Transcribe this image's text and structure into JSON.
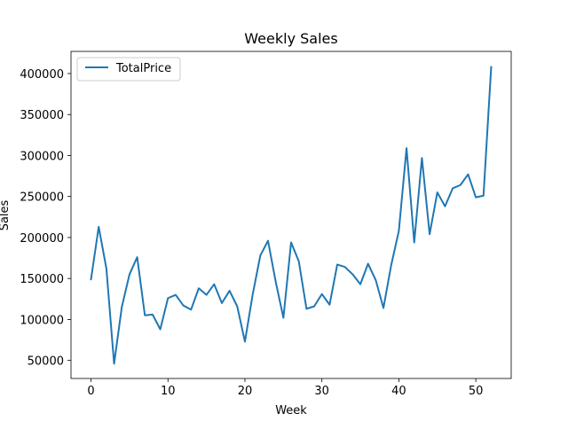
{
  "chart_data": {
    "type": "line",
    "title": "Weekly Sales",
    "xlabel": "Week",
    "ylabel": "Sales",
    "xlim": [
      -2.6,
      54.6
    ],
    "ylim": [
      28000,
      427000
    ],
    "x_ticks": [
      0,
      10,
      20,
      30,
      40,
      50
    ],
    "x_tick_labels": [
      "0",
      "10",
      "20",
      "30",
      "40",
      "50"
    ],
    "y_ticks": [
      50000,
      100000,
      150000,
      200000,
      250000,
      300000,
      350000,
      400000
    ],
    "y_tick_labels": [
      "50000",
      "100000",
      "150000",
      "200000",
      "250000",
      "300000",
      "350000",
      "400000"
    ],
    "grid": false,
    "legend_position": "top-left",
    "line_color": "#1f77b4",
    "x": [
      0,
      1,
      2,
      3,
      4,
      5,
      6,
      7,
      8,
      9,
      10,
      11,
      12,
      13,
      14,
      15,
      16,
      17,
      18,
      19,
      20,
      21,
      22,
      23,
      24,
      25,
      26,
      27,
      28,
      29,
      30,
      31,
      32,
      33,
      34,
      35,
      36,
      37,
      38,
      39,
      40,
      41,
      42,
      43,
      44,
      45,
      46,
      47,
      48,
      49,
      50,
      51,
      52
    ],
    "series": [
      {
        "name": "TotalPrice",
        "values": [
          149000,
          213000,
          162000,
          46000,
          115000,
          155000,
          176000,
          105000,
          106000,
          88000,
          126000,
          130000,
          117000,
          112000,
          138000,
          130000,
          143000,
          120000,
          135000,
          116000,
          73000,
          130000,
          178000,
          196000,
          146000,
          102000,
          194000,
          171000,
          113000,
          116000,
          131000,
          118000,
          167000,
          164000,
          155000,
          143000,
          168000,
          148000,
          114000,
          166000,
          208000,
          309000,
          194000,
          297000,
          204000,
          255000,
          238000,
          260000,
          264000,
          277000,
          249000,
          251000,
          408000
        ]
      }
    ]
  }
}
